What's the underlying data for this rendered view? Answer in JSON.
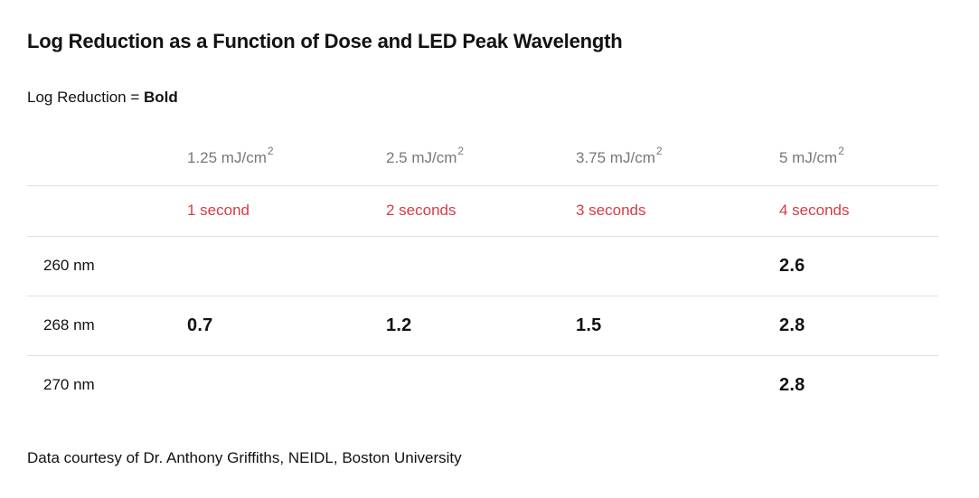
{
  "title": "Log Reduction as a Function of Dose and LED Peak Wavelength",
  "subtitle": {
    "prefix": "Log Reduction = ",
    "bold_word": "Bold"
  },
  "footer": "Data courtesy of Dr. Anthony Griffiths, NEIDL, Boston University",
  "colors": {
    "accent_red": "#d63c45",
    "header_gray": "#777777",
    "text": "#121212",
    "divider": "#e0e0e0"
  },
  "chart_data": {
    "type": "table",
    "title": "Log Reduction as a Function of Dose and LED Peak Wavelength",
    "legend_note": "Log Reduction = Bold",
    "dose_headers": [
      {
        "text": "1.25 mJ/cm",
        "sup": "2"
      },
      {
        "text": "2.5 mJ/cm",
        "sup": "2"
      },
      {
        "text": "3.75 mJ/cm",
        "sup": "2"
      },
      {
        "text": "5 mJ/cm",
        "sup": "2"
      }
    ],
    "time_headers": [
      "1 second",
      "2 seconds",
      "3 seconds",
      "4 seconds"
    ],
    "rows": [
      {
        "label": "260 nm",
        "values": [
          "",
          "",
          "",
          "2.6"
        ]
      },
      {
        "label": "268 nm",
        "values": [
          "0.7",
          "1.2",
          "1.5",
          "2.8"
        ]
      },
      {
        "label": "270 nm",
        "values": [
          "",
          "",
          "",
          "2.8"
        ]
      }
    ],
    "source": "Data courtesy of Dr. Anthony Griffiths, NEIDL, Boston University"
  }
}
